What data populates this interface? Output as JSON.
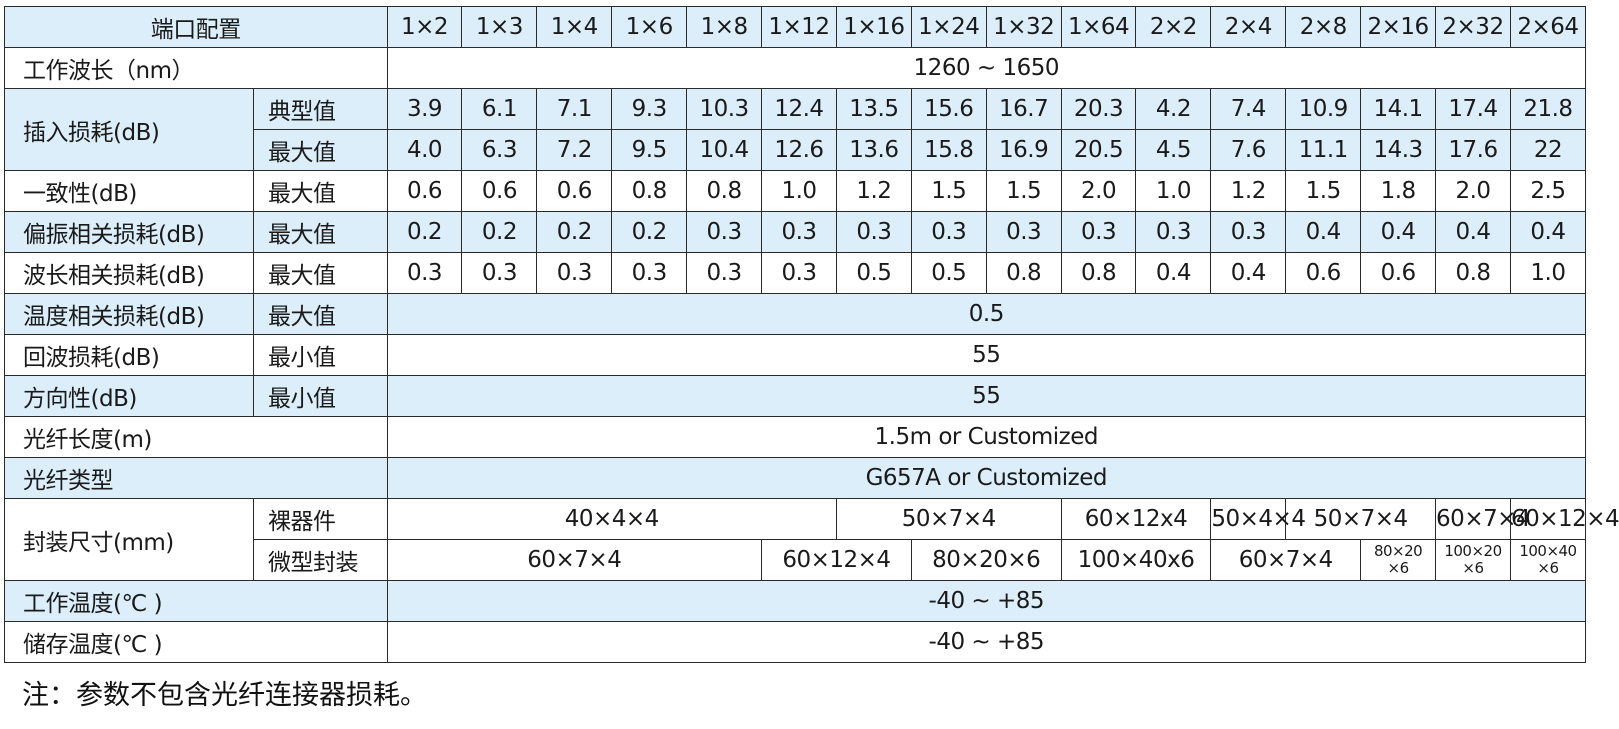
{
  "header": {
    "label": "端口配置",
    "ports": [
      "1×2",
      "1×3",
      "1×4",
      "1×6",
      "1×8",
      "1×12",
      "1×16",
      "1×24",
      "1×32",
      "1×64",
      "2×2",
      "2×4",
      "2×8",
      "2×16",
      "2×32",
      "2×64"
    ]
  },
  "wavelength": {
    "label": "工作波长（nm）",
    "value": "1260 ~ 1650"
  },
  "insertion_loss": {
    "label": "插入损耗(dB)",
    "typical": {
      "label": "典型值",
      "values": [
        "3.9",
        "6.1",
        "7.1",
        "9.3",
        "10.3",
        "12.4",
        "13.5",
        "15.6",
        "16.7",
        "20.3",
        "4.2",
        "7.4",
        "10.9",
        "14.1",
        "17.4",
        "21.8"
      ]
    },
    "max": {
      "label": "最大值",
      "values": [
        "4.0",
        "6.3",
        "7.2",
        "9.5",
        "10.4",
        "12.6",
        "13.6",
        "15.8",
        "16.9",
        "20.5",
        "4.5",
        "7.6",
        "11.1",
        "14.3",
        "17.6",
        "22"
      ]
    }
  },
  "uniformity": {
    "label": "一致性(dB)",
    "sub": "最大值",
    "values": [
      "0.6",
      "0.6",
      "0.6",
      "0.8",
      "0.8",
      "1.0",
      "1.2",
      "1.5",
      "1.5",
      "2.0",
      "1.0",
      "1.2",
      "1.5",
      "1.8",
      "2.0",
      "2.5"
    ]
  },
  "pdl": {
    "label": "偏振相关损耗(dB)",
    "sub": "最大值",
    "values": [
      "0.2",
      "0.2",
      "0.2",
      "0.2",
      "0.3",
      "0.3",
      "0.3",
      "0.3",
      "0.3",
      "0.3",
      "0.3",
      "0.3",
      "0.4",
      "0.4",
      "0.4",
      "0.4"
    ]
  },
  "wdl": {
    "label": "波长相关损耗(dB)",
    "sub": "最大值",
    "values": [
      "0.3",
      "0.3",
      "0.3",
      "0.3",
      "0.3",
      "0.3",
      "0.5",
      "0.5",
      "0.8",
      "0.8",
      "0.4",
      "0.4",
      "0.6",
      "0.6",
      "0.8",
      "1.0"
    ]
  },
  "tdl": {
    "label": "温度相关损耗(dB)",
    "sub": "最大值",
    "value": "0.5"
  },
  "return_loss": {
    "label": "回波损耗(dB)",
    "sub": "最小值",
    "value": "55"
  },
  "directivity": {
    "label": "方向性(dB)",
    "sub": "最小值",
    "value": "55"
  },
  "fiber_length": {
    "label": "光纤长度(m)",
    "value": "1.5m or  Customized"
  },
  "fiber_type": {
    "label": "光纤类型",
    "value": "G657A or  Customized"
  },
  "package": {
    "label": "封装尺寸(mm)",
    "bare": {
      "label": "裸器件",
      "cells": [
        "40×4×4",
        "50×7×4",
        "60×12x4",
        "50×4×4",
        "50×7×4",
        "60×7×4",
        "60×12×4"
      ]
    },
    "mini": {
      "label": "微型封装",
      "cells": [
        "60×7×4",
        "60×12×4",
        "80×20×6",
        "100×40x6",
        "60×7×4"
      ],
      "small": [
        {
          "top": "80×20",
          "bottom": "×6"
        },
        {
          "top": "100×20",
          "bottom": "×6"
        },
        {
          "top": "100×40",
          "bottom": "×6"
        }
      ]
    }
  },
  "operating_temp": {
    "label": "工作温度(℃ )",
    "value": "-40 ~ +85"
  },
  "storage_temp": {
    "label": "储存温度(℃ )",
    "value": "-40 ~ +85"
  },
  "note": "注：参数不包含光纤连接器损耗。"
}
